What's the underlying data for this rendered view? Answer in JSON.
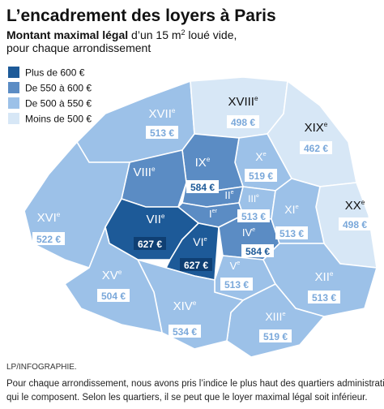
{
  "header": {
    "title": "L’encadrement des loyers à Paris",
    "subtitle_bold": "Montant maximal légal",
    "subtitle_rest": " d’un 15 m",
    "subtitle_sup": "2",
    "subtitle_end": " loué vide,",
    "subtitle_line2": "pour chaque arrondissement"
  },
  "legend": [
    {
      "label": "Plus de 600 €",
      "color": "#1d5a98"
    },
    {
      "label": "De 550 à 600 €",
      "color": "#5b8cc4"
    },
    {
      "label": "De 500 à 550 €",
      "color": "#9cc1e8"
    },
    {
      "label": "Moins de 500 €",
      "color": "#d7e7f6"
    }
  ],
  "districts": [
    {
      "name": "XVII",
      "sup": "e",
      "price": "513 €",
      "color": "#9cc1e8"
    },
    {
      "name": "XVIII",
      "sup": "e",
      "price": "498 €",
      "color": "#d7e7f6"
    },
    {
      "name": "XIX",
      "sup": "e",
      "price": "462 €",
      "color": "#d7e7f6"
    },
    {
      "name": "XX",
      "sup": "e",
      "price": "498 €",
      "color": "#d7e7f6"
    },
    {
      "name": "X",
      "sup": "e",
      "price": "519 €",
      "color": "#9cc1e8"
    },
    {
      "name": "IX",
      "sup": "e",
      "price": "584 €",
      "color": "#5b8cc4"
    },
    {
      "name": "VIII",
      "sup": "e",
      "color": "#5b8cc4"
    },
    {
      "name": "XVI",
      "sup": "e",
      "price": "522 €",
      "color": "#9cc1e8"
    },
    {
      "name": "II",
      "sup": "e",
      "color": "#5b8cc4"
    },
    {
      "name": "III",
      "sup": "e",
      "price": "513 €",
      "color": "#9cc1e8"
    },
    {
      "name": "I",
      "sup": "er",
      "color": "#5b8cc4"
    },
    {
      "name": "VII",
      "sup": "e",
      "price": "627 €",
      "color": "#1d5a98"
    },
    {
      "name": "VI",
      "sup": "e",
      "price": "627 €",
      "color": "#1d5a98"
    },
    {
      "name": "IV",
      "sup": "e",
      "price": "584 €",
      "color": "#5b8cc4"
    },
    {
      "name": "XI",
      "sup": "e",
      "price": "513 €",
      "color": "#9cc1e8"
    },
    {
      "name": "V",
      "sup": "e",
      "price": "513 €",
      "color": "#9cc1e8"
    },
    {
      "name": "XII",
      "sup": "e",
      "price": "513 €",
      "color": "#9cc1e8"
    },
    {
      "name": "XIII",
      "sup": "e",
      "price": "519 €",
      "color": "#9cc1e8"
    },
    {
      "name": "XIV",
      "sup": "e",
      "price": "534 €",
      "color": "#9cc1e8"
    },
    {
      "name": "XV",
      "sup": "e",
      "price": "504 €",
      "color": "#9cc1e8"
    }
  ],
  "footer": {
    "credit": "LP/INFOGRAPHIE.",
    "note_line1": "Pour chaque arrondissement, nous avons pris l’indice le plus haut des quartiers administratifs",
    "note_line2": "qui le composent. Selon les quartiers, il se peut que le loyer maximal légal soit inférieur."
  }
}
